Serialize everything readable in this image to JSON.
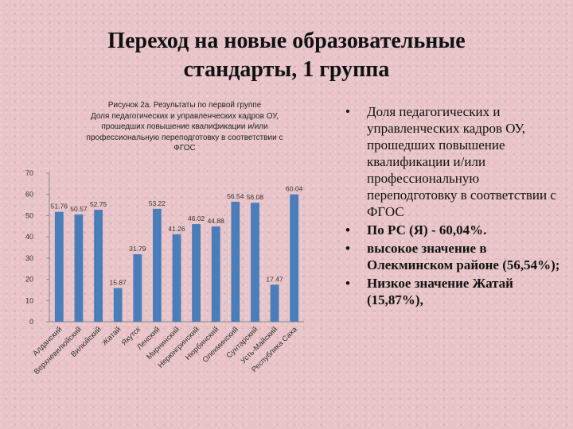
{
  "slide": {
    "title_line1": "Переход на новые образовательные",
    "title_line2": "стандарты, 1 группа"
  },
  "chart_caption": [
    "Рисунок 2а. Результаты по первой группе",
    "Доля педагогических и управленческих кадров ОУ,",
    "прошедших повышение квалификации и/или",
    "профессиональную переподготовку в соответствии с",
    "ФГОС"
  ],
  "chart_data": {
    "type": "bar",
    "title": "Рисунок 2а. Результаты по первой группе Доля педагогических и управленческих кадров ОУ, прошедших повышение квалификации и/или профессиональную переподготовку в соответствии с ФГОС",
    "xlabel": "",
    "ylabel": "",
    "ylim": [
      0,
      70
    ],
    "yticks": [
      "0",
      "10",
      "20",
      "30",
      "40",
      "50",
      "60",
      "70"
    ],
    "grid": false,
    "bar_color": "#4a7ebb",
    "categories": [
      "Алданский",
      "Верхневилюйский",
      "Вилюйский",
      "Жатай",
      "Якутск",
      "Ленский",
      "Мирнинский",
      "Нерюнгринский",
      "Нюрбинский",
      "Олекминский",
      "Сунтарский",
      "Усть-Майский",
      "Республика Саха"
    ],
    "values": [
      51.76,
      50.57,
      52.75,
      15.87,
      31.79,
      53.22,
      41.26,
      46.02,
      44.88,
      56.54,
      56.08,
      17.47,
      60.04
    ],
    "labels": [
      "51.76",
      "50.57",
      "52.75",
      "15.87",
      "31.79",
      "53.22",
      "41.26",
      "46.02",
      "44.88",
      "56.54",
      "56.08",
      "17.47",
      "60.04"
    ]
  },
  "bullets": [
    {
      "marker": "•",
      "text": "Доля педагогических и управленческих кадров ОУ, прошедших повышение квалификации и/или профессиональную переподготовку в соответствии с ФГОС",
      "bold": false
    },
    {
      "marker": "•",
      "text": "По РС (Я) - 60,04%.",
      "bold": true
    },
    {
      "marker": "•",
      "text": "высокое значение в Олекминском районе (56,54%);",
      "bold": true
    },
    {
      "marker": "•",
      "text": "Низкое значение Жатай (15,87%),",
      "bold": true
    }
  ]
}
